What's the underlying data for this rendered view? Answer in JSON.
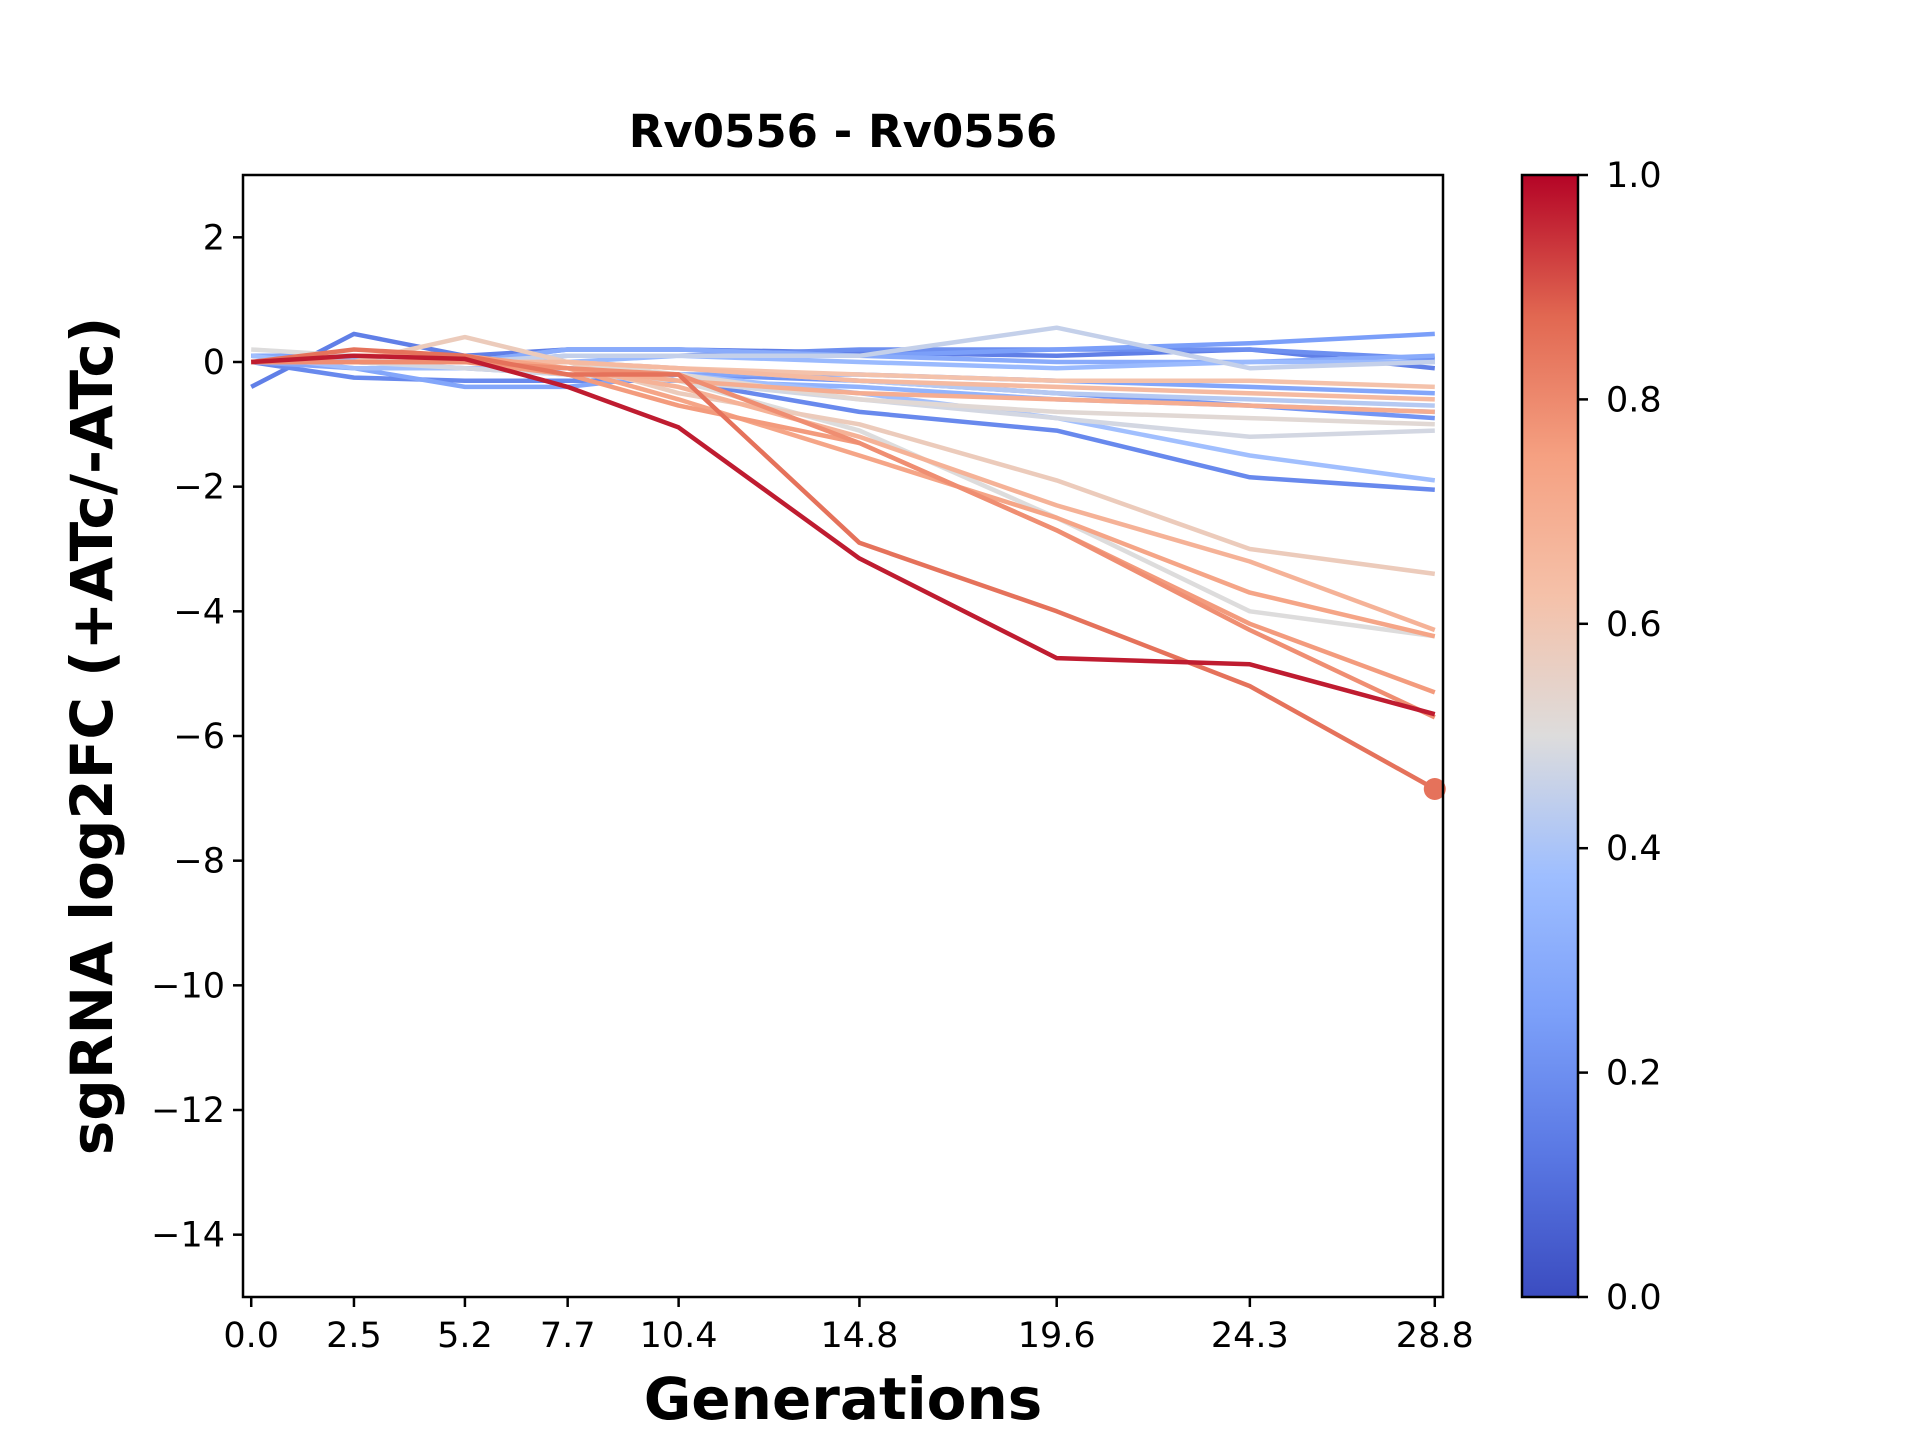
{
  "chart_data": {
    "type": "line",
    "title": "Rv0556 - Rv0556",
    "xlabel": "Generations",
    "ylabel": "sgRNA log2FC (+ATc/-ATc)",
    "x": [
      0.0,
      2.5,
      5.2,
      7.7,
      10.4,
      14.8,
      19.6,
      24.3,
      28.8
    ],
    "x_tick_labels": [
      "0.0",
      "2.5",
      "5.2",
      "7.7",
      "10.4",
      "14.8",
      "19.6",
      "24.3",
      "28.8"
    ],
    "xlim": [
      -0.2,
      29.0
    ],
    "ylim": [
      -15,
      3
    ],
    "y_ticks": [
      2,
      0,
      -2,
      -4,
      -6,
      -8,
      -10,
      -12,
      -14
    ],
    "y_tick_labels": [
      "2",
      "0",
      "−2",
      "−4",
      "−6",
      "−8",
      "−10",
      "−12",
      "−14"
    ],
    "colorbar": {
      "colormap": "coolwarm",
      "range": [
        0.0,
        1.0
      ],
      "ticks": [
        1.0,
        0.8,
        0.6,
        0.4,
        0.2,
        0.0
      ],
      "tick_labels": [
        "1.0",
        "0.8",
        "0.6",
        "0.4",
        "0.2",
        "0.0"
      ]
    },
    "grid": false,
    "series": [
      {
        "value": 0.15,
        "y": [
          -0.4,
          0.45,
          0.1,
          0.2,
          0.2,
          0.15,
          0.1,
          0.2,
          -0.1
        ]
      },
      {
        "value": 0.18,
        "y": [
          0.0,
          -0.25,
          -0.3,
          -0.3,
          -0.3,
          -0.8,
          -1.1,
          -1.85,
          -2.05
        ]
      },
      {
        "value": 0.2,
        "y": [
          0.1,
          0.0,
          0.0,
          0.1,
          0.1,
          0.2,
          0.2,
          0.2,
          0.05
        ]
      },
      {
        "value": 0.22,
        "y": [
          0.0,
          0.0,
          0.0,
          -0.1,
          -0.2,
          -0.3,
          -0.5,
          -0.7,
          -0.9
        ]
      },
      {
        "value": 0.25,
        "y": [
          0.1,
          0.1,
          0.0,
          0.2,
          0.2,
          0.1,
          0.2,
          0.3,
          0.45
        ]
      },
      {
        "value": 0.28,
        "y": [
          0.0,
          -0.1,
          -0.4,
          -0.4,
          -0.2,
          -0.2,
          -0.3,
          -0.4,
          -0.5
        ]
      },
      {
        "value": 0.3,
        "y": [
          0.1,
          0.05,
          0.0,
          0.2,
          0.2,
          0.1,
          0.0,
          0.0,
          0.1
        ]
      },
      {
        "value": 0.33,
        "y": [
          0.0,
          0.0,
          -0.1,
          -0.2,
          -0.3,
          -0.4,
          -0.6,
          -0.7,
          -0.8
        ]
      },
      {
        "value": 0.36,
        "y": [
          0.0,
          0.05,
          0.0,
          0.0,
          0.1,
          0.0,
          -0.1,
          0.0,
          0.0
        ]
      },
      {
        "value": 0.38,
        "y": [
          0.1,
          -0.1,
          -0.1,
          -0.1,
          -0.2,
          -0.5,
          -0.9,
          -1.5,
          -1.9
        ]
      },
      {
        "value": 0.42,
        "y": [
          0.0,
          0.0,
          0.0,
          0.0,
          -0.1,
          -0.3,
          -0.5,
          -0.6,
          -0.7
        ]
      },
      {
        "value": 0.45,
        "y": [
          0.0,
          0.0,
          0.0,
          0.1,
          0.1,
          0.1,
          0.55,
          -0.1,
          0.0
        ]
      },
      {
        "value": 0.48,
        "y": [
          0.0,
          0.0,
          -0.1,
          -0.2,
          -0.3,
          -0.6,
          -0.9,
          -1.2,
          -1.1
        ]
      },
      {
        "value": 0.5,
        "y": [
          0.2,
          0.1,
          0.0,
          0.0,
          -0.3,
          -1.1,
          -2.5,
          -4.0,
          -4.4
        ]
      },
      {
        "value": 0.52,
        "y": [
          0.0,
          0.0,
          0.0,
          0.0,
          -0.2,
          -0.6,
          -0.8,
          -0.9,
          -1.0
        ]
      },
      {
        "value": 0.58,
        "y": [
          0.0,
          0.0,
          0.4,
          0.0,
          -0.5,
          -1.0,
          -1.9,
          -3.0,
          -3.4
        ]
      },
      {
        "value": 0.62,
        "y": [
          0.0,
          0.0,
          0.0,
          0.0,
          -0.1,
          -0.2,
          -0.3,
          -0.3,
          -0.4
        ]
      },
      {
        "value": 0.65,
        "y": [
          0.0,
          0.0,
          0.0,
          0.0,
          -0.1,
          -0.3,
          -0.4,
          -0.5,
          -0.6
        ]
      },
      {
        "value": 0.68,
        "y": [
          0.0,
          0.0,
          0.0,
          -0.1,
          -0.4,
          -1.2,
          -2.3,
          -3.2,
          -4.3
        ]
      },
      {
        "value": 0.7,
        "y": [
          0.0,
          0.0,
          0.0,
          -0.1,
          -0.3,
          -0.5,
          -0.6,
          -0.7,
          -0.8
        ]
      },
      {
        "value": 0.73,
        "y": [
          0.0,
          0.1,
          0.1,
          -0.1,
          -0.6,
          -1.5,
          -2.5,
          -3.7,
          -4.4
        ]
      },
      {
        "value": 0.76,
        "y": [
          0.0,
          0.0,
          0.0,
          -0.2,
          -0.7,
          -1.3,
          -2.7,
          -4.2,
          -5.3
        ]
      },
      {
        "value": 0.79,
        "y": [
          0.0,
          0.0,
          0.0,
          -0.1,
          -0.2,
          -1.3,
          -2.7,
          -4.3,
          -5.7
        ]
      },
      {
        "value": 0.85,
        "y": [
          0.0,
          0.2,
          0.1,
          -0.2,
          -0.2,
          -2.9,
          -4.0,
          -5.2,
          -6.85
        ]
      },
      {
        "value": 0.97,
        "y": [
          0.0,
          0.1,
          0.05,
          -0.4,
          -1.05,
          -3.15,
          -4.75,
          -4.85,
          -5.65
        ]
      }
    ],
    "highlight_point": {
      "x": 28.8,
      "y": -6.85,
      "value": 0.85
    }
  }
}
